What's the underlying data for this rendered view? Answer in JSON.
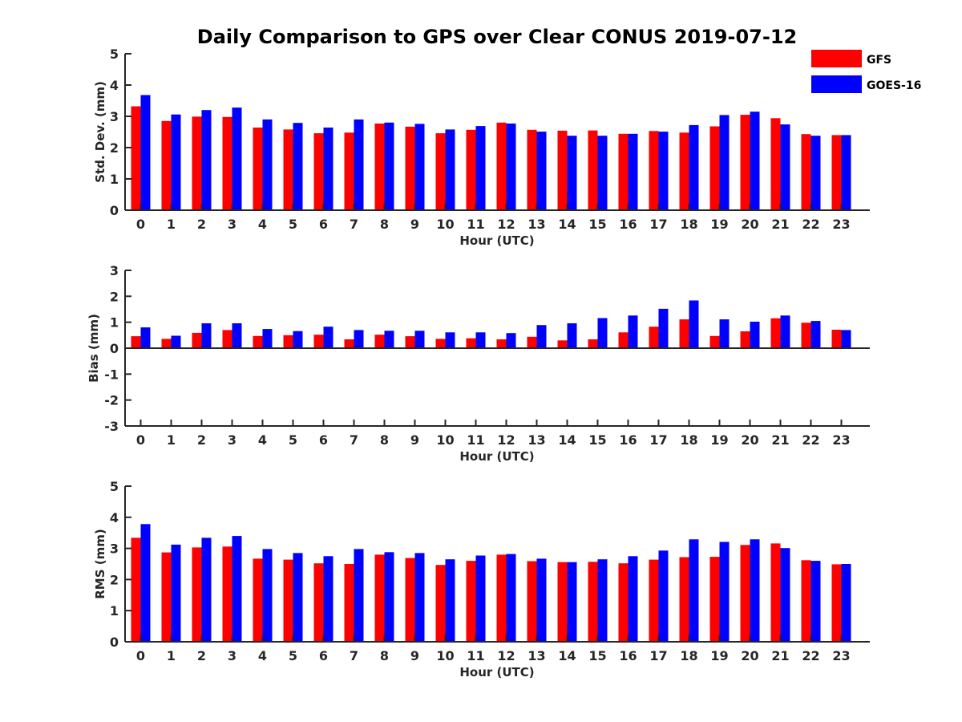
{
  "figure": {
    "title": "Daily Comparison to GPS over Clear CONUS 2019-07-12"
  },
  "legend": {
    "placement": "top-right",
    "entries": [
      {
        "name": "GFS",
        "color": "#ff0000"
      },
      {
        "name": "GOES-16",
        "color": "#0000ff"
      }
    ]
  },
  "chart_data": [
    {
      "type": "bar",
      "categories": [
        "0",
        "1",
        "2",
        "3",
        "4",
        "5",
        "6",
        "7",
        "8",
        "9",
        "10",
        "11",
        "12",
        "13",
        "14",
        "15",
        "16",
        "17",
        "18",
        "19",
        "20",
        "21",
        "22",
        "23"
      ],
      "xlabel": "Hour (UTC)",
      "ylabel": "Std. Dev. (mm)",
      "ylim": [
        0,
        5
      ],
      "yticks": [
        0,
        1,
        2,
        3,
        4,
        5
      ],
      "series": [
        {
          "name": "GFS",
          "color": "#ff0000",
          "values": [
            3.32,
            2.85,
            2.99,
            2.98,
            2.64,
            2.58,
            2.46,
            2.48,
            2.77,
            2.67,
            2.46,
            2.57,
            2.8,
            2.57,
            2.54,
            2.55,
            2.44,
            2.53,
            2.48,
            2.68,
            3.05,
            2.94,
            2.43,
            2.4
          ]
        },
        {
          "name": "GOES-16",
          "color": "#0000ff",
          "values": [
            3.68,
            3.06,
            3.2,
            3.28,
            2.9,
            2.79,
            2.64,
            2.9,
            2.8,
            2.76,
            2.58,
            2.69,
            2.77,
            2.51,
            2.38,
            2.38,
            2.44,
            2.51,
            2.72,
            3.04,
            3.15,
            2.74,
            2.38,
            2.4
          ]
        }
      ]
    },
    {
      "type": "bar",
      "categories": [
        "0",
        "1",
        "2",
        "3",
        "4",
        "5",
        "6",
        "7",
        "8",
        "9",
        "10",
        "11",
        "12",
        "13",
        "14",
        "15",
        "16",
        "17",
        "18",
        "19",
        "20",
        "21",
        "22",
        "23"
      ],
      "xlabel": "Hour (UTC)",
      "ylabel": "Bias (mm)",
      "ylim": [
        -3,
        3
      ],
      "yticks": [
        -3,
        -2,
        -1,
        0,
        1,
        2,
        3
      ],
      "series": [
        {
          "name": "GFS",
          "color": "#ff0000",
          "values": [
            0.46,
            0.36,
            0.59,
            0.7,
            0.47,
            0.5,
            0.52,
            0.34,
            0.52,
            0.46,
            0.36,
            0.38,
            0.34,
            0.44,
            0.3,
            0.34,
            0.61,
            0.83,
            1.11,
            0.47,
            0.65,
            1.15,
            0.98,
            0.71
          ]
        },
        {
          "name": "GOES-16",
          "color": "#0000ff",
          "values": [
            0.8,
            0.48,
            0.96,
            0.96,
            0.74,
            0.66,
            0.83,
            0.7,
            0.67,
            0.67,
            0.61,
            0.61,
            0.58,
            0.89,
            0.96,
            1.16,
            1.26,
            1.52,
            1.84,
            1.11,
            1.02,
            1.26,
            1.05,
            0.7
          ]
        }
      ]
    },
    {
      "type": "bar",
      "categories": [
        "0",
        "1",
        "2",
        "3",
        "4",
        "5",
        "6",
        "7",
        "8",
        "9",
        "10",
        "11",
        "12",
        "13",
        "14",
        "15",
        "16",
        "17",
        "18",
        "19",
        "20",
        "21",
        "22",
        "23"
      ],
      "xlabel": "Hour (UTC)",
      "ylabel": "RMS (mm)",
      "ylim": [
        0,
        5
      ],
      "yticks": [
        0,
        1,
        2,
        3,
        4,
        5
      ],
      "series": [
        {
          "name": "GFS",
          "color": "#ff0000",
          "values": [
            3.34,
            2.87,
            3.03,
            3.06,
            2.67,
            2.64,
            2.52,
            2.5,
            2.8,
            2.69,
            2.47,
            2.6,
            2.8,
            2.59,
            2.56,
            2.57,
            2.52,
            2.64,
            2.72,
            2.73,
            3.11,
            3.16,
            2.62,
            2.49
          ]
        },
        {
          "name": "GOES-16",
          "color": "#0000ff",
          "values": [
            3.78,
            3.12,
            3.34,
            3.4,
            2.98,
            2.85,
            2.75,
            2.98,
            2.88,
            2.85,
            2.65,
            2.77,
            2.82,
            2.67,
            2.56,
            2.65,
            2.75,
            2.93,
            3.29,
            3.21,
            3.29,
            3.01,
            2.6,
            2.5
          ]
        }
      ]
    }
  ]
}
